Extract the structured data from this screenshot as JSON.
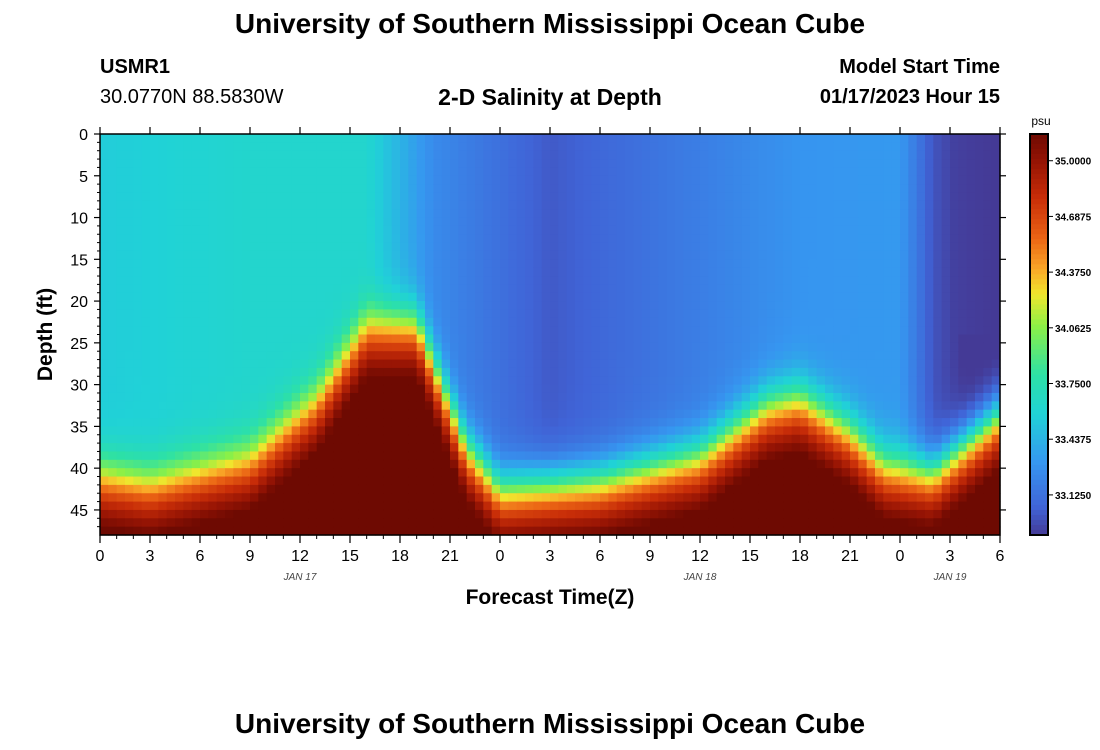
{
  "header": {
    "title": "University of Southern Mississippi Ocean Cube",
    "station_id": "USMR1",
    "station_coords": "30.0770N  88.5830W",
    "subtitle": "2-D Salinity at Depth",
    "model_start_label": "Model Start Time",
    "model_start_time": "01/17/2023 Hour 15"
  },
  "footer": {
    "title": "University of Southern Mississippi Ocean Cube"
  },
  "chart_data": {
    "type": "heatmap",
    "title": "2-D Salinity at Depth",
    "xlabel": "Forecast Time(Z)",
    "ylabel": "Depth (ft)",
    "x_tick_labels": [
      "0",
      "3",
      "6",
      "9",
      "12",
      "15",
      "18",
      "21",
      "0",
      "3",
      "6",
      "9",
      "12",
      "15",
      "18",
      "21",
      "0",
      "3",
      "6"
    ],
    "date_labels": [
      {
        "label": "JAN 17",
        "at_tick": 4
      },
      {
        "label": "JAN 18",
        "at_tick": 12
      },
      {
        "label": "JAN 19",
        "at_tick": 17
      }
    ],
    "y_ticks": [
      0,
      5,
      10,
      15,
      20,
      25,
      30,
      35,
      40,
      45
    ],
    "ylim": [
      0,
      48
    ],
    "y_inverted": true,
    "x_hours_total": 54,
    "colorbar": {
      "unit": "psu",
      "min": 32.9,
      "max": 35.15,
      "tick_values": [
        35.0,
        34.6875,
        34.375,
        34.0625,
        33.75,
        33.4375,
        33.125
      ],
      "tick_labels": [
        "35.0000",
        "34.6875",
        "34.3750",
        "34.0625",
        "33.7500",
        "33.4375",
        "33.1250"
      ]
    },
    "surface_profile": {
      "description_hour": [
        0,
        9,
        16,
        20,
        27,
        42,
        48,
        50,
        52,
        54
      ],
      "surface_psu": [
        33.55,
        33.62,
        33.62,
        33.25,
        33.02,
        33.3,
        33.32,
        33.0,
        32.88,
        32.88
      ]
    },
    "halocline_depth_ft": {
      "hour": [
        0,
        3,
        9,
        13,
        16,
        19,
        22,
        24,
        30,
        36,
        40,
        42,
        45,
        47,
        50,
        54
      ],
      "depth": [
        40,
        41,
        38,
        31,
        22,
        22,
        37,
        42,
        41,
        38,
        32,
        31,
        35,
        39,
        40,
        33
      ]
    },
    "bottom_psu": 35.0,
    "upper_psu": 34.3
  }
}
